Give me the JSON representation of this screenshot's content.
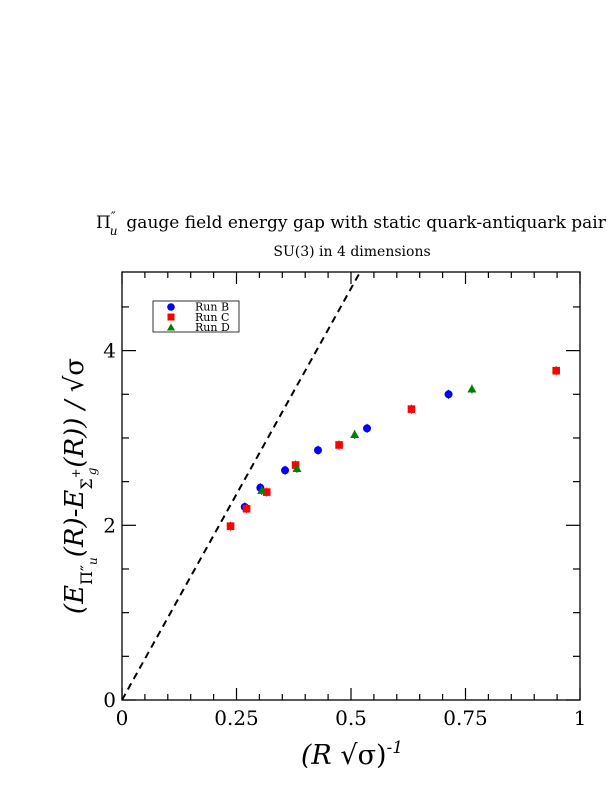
{
  "chart_data": {
    "type": "scatter",
    "title": "Π″u  gauge field energy gap with static quark-antiquark pair",
    "title_symbol": "Π",
    "title_sup": "″",
    "title_sub": "u",
    "title_rest": "gauge field energy gap with static quark-antiquark pair",
    "subtitle": "SU(3) in 4 dimensions",
    "xlabel": "(R √σ)^-1",
    "xlabel_parts": {
      "open": "(R ",
      "root": "√",
      "sigma": "σ",
      "close": ")",
      "exp": "-1"
    },
    "ylabel": "(E_Π″u(R) - E_Σ+g(R)) / √σ",
    "ylabel_parts": {
      "open": "(E",
      "sub1": "Π″",
      "sub1b": "u",
      "mid": "(R)-E",
      "sub2": "Σ",
      "sup2": "+",
      "sub2b": "g",
      "close": "(R)) / ",
      "root": "√",
      "sigma": "σ"
    },
    "xlim": [
      0,
      1
    ],
    "ylim": [
      0,
      4.9
    ],
    "xticks": [
      {
        "value": 0,
        "label": "0"
      },
      {
        "value": 0.25,
        "label": "0.25"
      },
      {
        "value": 0.5,
        "label": "0.5"
      },
      {
        "value": 0.75,
        "label": "0.75"
      },
      {
        "value": 1,
        "label": "1"
      }
    ],
    "yticks": [
      {
        "value": 0,
        "label": "0"
      },
      {
        "value": 2,
        "label": "2"
      },
      {
        "value": 4,
        "label": "4"
      }
    ],
    "grid": false,
    "legend_position": "top-left",
    "reference_line": {
      "style": "dashed",
      "color": "#000000",
      "x": [
        0,
        0.52
      ],
      "y": [
        0,
        4.9
      ]
    },
    "series": [
      {
        "name": "Run B",
        "color": "#0000ff",
        "marker": "circle",
        "points": [
          {
            "x": 0.268,
            "y": 2.21
          },
          {
            "x": 0.302,
            "y": 2.43
          },
          {
            "x": 0.356,
            "y": 2.63
          },
          {
            "x": 0.428,
            "y": 2.86
          },
          {
            "x": 0.535,
            "y": 3.11
          },
          {
            "x": 0.713,
            "y": 3.5
          }
        ]
      },
      {
        "name": "Run C",
        "color": "#ff0000",
        "marker": "square",
        "points": [
          {
            "x": 0.237,
            "y": 1.99
          },
          {
            "x": 0.272,
            "y": 2.19
          },
          {
            "x": 0.316,
            "y": 2.38
          },
          {
            "x": 0.379,
            "y": 2.69
          },
          {
            "x": 0.474,
            "y": 2.92
          },
          {
            "x": 0.632,
            "y": 3.33
          },
          {
            "x": 0.948,
            "y": 3.77
          }
        ]
      },
      {
        "name": "Run D",
        "color": "#008000",
        "marker": "triangle",
        "points": [
          {
            "x": 0.305,
            "y": 2.4
          },
          {
            "x": 0.382,
            "y": 2.65
          },
          {
            "x": 0.508,
            "y": 3.04
          },
          {
            "x": 0.764,
            "y": 3.56
          }
        ]
      }
    ]
  }
}
